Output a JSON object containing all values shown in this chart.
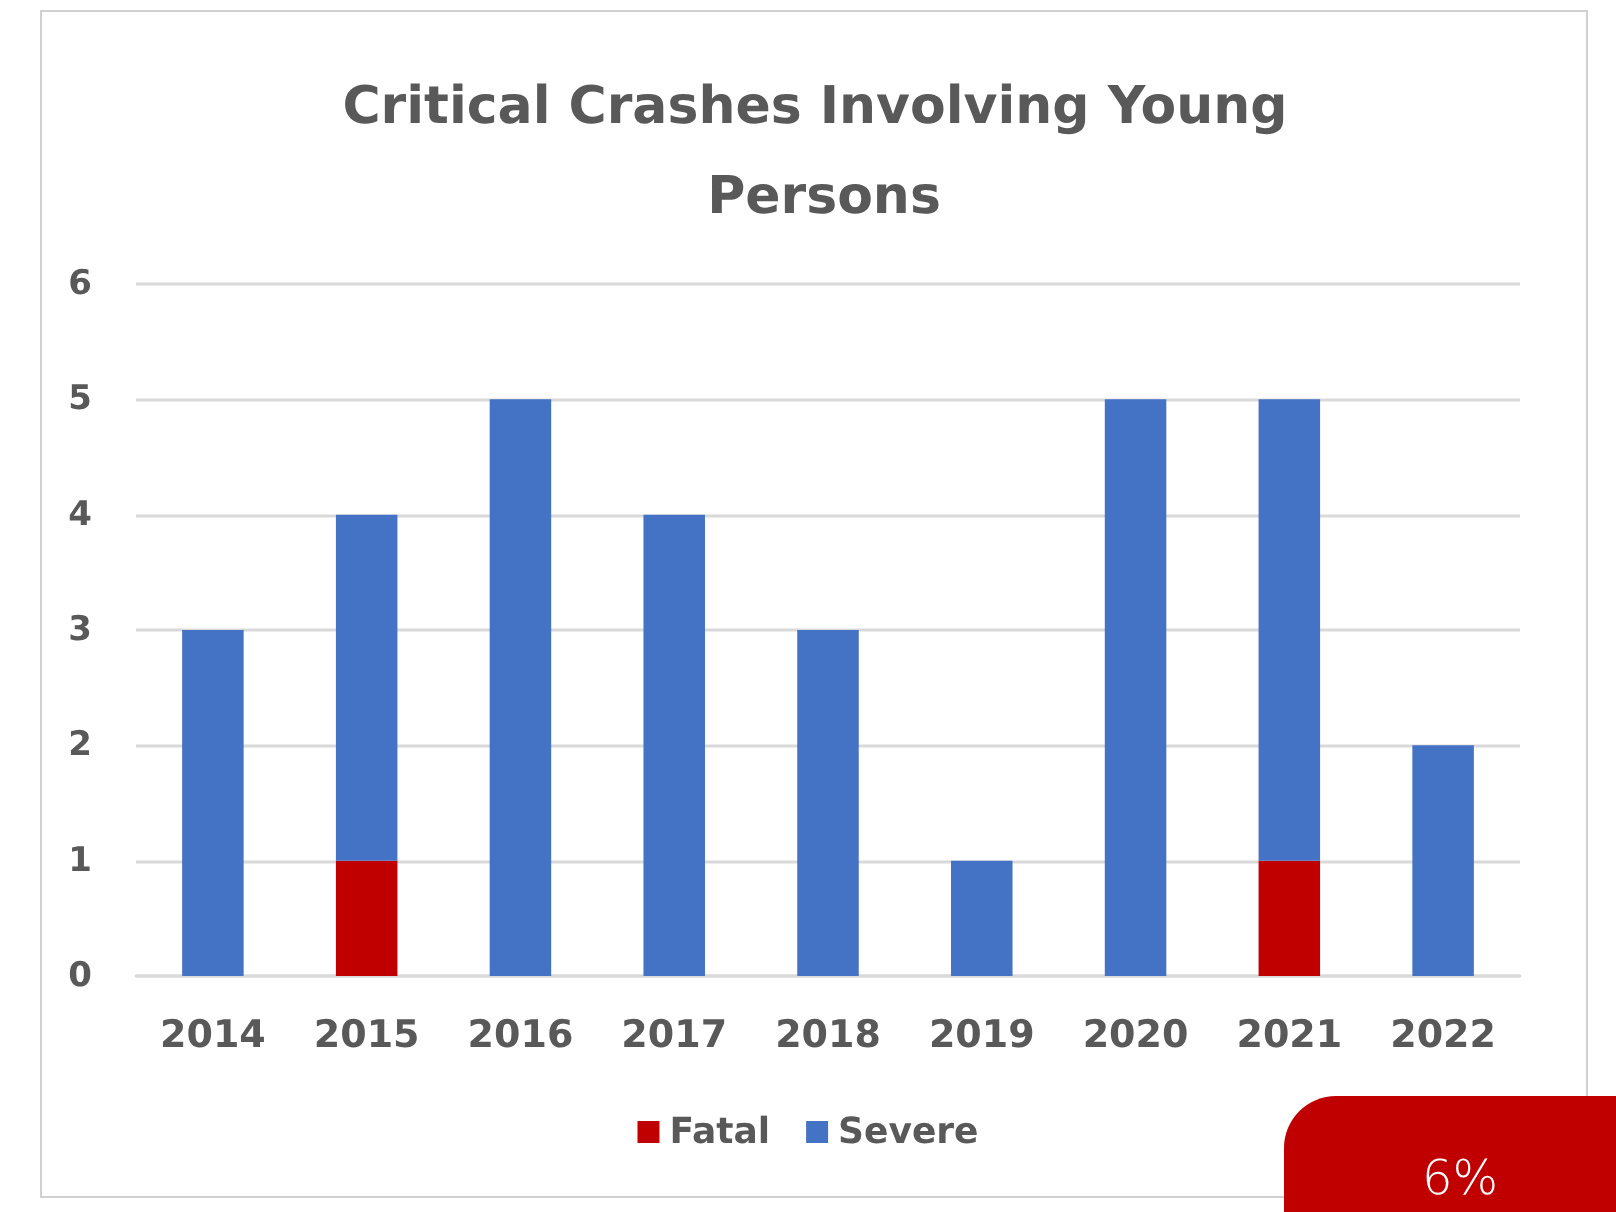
{
  "chart_data": {
    "type": "bar",
    "title": "Critical Crashes Involving Young Persons",
    "categories": [
      "2014",
      "2015",
      "2016",
      "2017",
      "2018",
      "2019",
      "2020",
      "2021",
      "2022"
    ],
    "series": [
      {
        "name": "Fatal",
        "color": "#c00000",
        "values": [
          0,
          1,
          0,
          0,
          0,
          0,
          0,
          1,
          0
        ]
      },
      {
        "name": "Severe",
        "color": "#4472c4",
        "values": [
          3,
          3,
          5,
          4,
          3,
          1,
          5,
          4,
          2
        ]
      }
    ],
    "stacked": true,
    "ylim": [
      0,
      6
    ],
    "yticks": [
      0,
      1,
      2,
      3,
      4,
      5,
      6
    ],
    "grid": "y",
    "legend": "bottom",
    "annotations": [
      "6%"
    ]
  }
}
